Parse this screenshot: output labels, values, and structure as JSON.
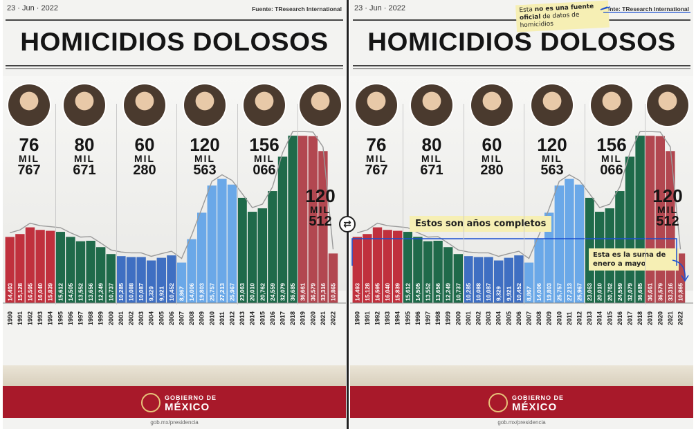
{
  "header": {
    "date": "23 · Jun · 2022",
    "source": "Fuente: TResearch International",
    "title": "HOMICIDIOS DOLOSOS"
  },
  "presidents": [
    {
      "icon": "portrait-salinas-icon",
      "total_line1": "76",
      "total_unit": "MIL",
      "total_line2": "767"
    },
    {
      "icon": "portrait-zedillo-icon",
      "total_line1": "80",
      "total_unit": "MIL",
      "total_line2": "671"
    },
    {
      "icon": "portrait-fox-icon",
      "total_line1": "60",
      "total_unit": "MIL",
      "total_line2": "280"
    },
    {
      "icon": "portrait-calderon-icon",
      "total_line1": "120",
      "total_unit": "MIL",
      "total_line2": "563"
    },
    {
      "icon": "portrait-pena-icon",
      "total_line1": "156",
      "total_unit": "MIL",
      "total_line2": "066"
    },
    {
      "icon": "portrait-amlo-icon",
      "total_line1": "120",
      "total_unit": "MIL",
      "total_line2": "512"
    }
  ],
  "chart_data": {
    "type": "bar",
    "title": "HOMICIDIOS DOLOSOS",
    "categories": [
      "1990",
      "1991",
      "1992",
      "1993",
      "1994",
      "1995",
      "1996",
      "1997",
      "1998",
      "1999",
      "2000",
      "2001",
      "2002",
      "2003",
      "2004",
      "2005",
      "2006",
      "2007",
      "2008",
      "2009",
      "2010",
      "2011",
      "2012",
      "2013",
      "2014",
      "2015",
      "2016",
      "2017",
      "2018",
      "2019",
      "2020",
      "2021",
      "2022"
    ],
    "values": [
      14493,
      15128,
      16595,
      16040,
      15839,
      15612,
      14505,
      13552,
      13656,
      12249,
      10737,
      10285,
      10088,
      10087,
      9329,
      9921,
      10452,
      8867,
      14006,
      19803,
      25757,
      27213,
      25967,
      23063,
      20010,
      20762,
      24559,
      32079,
      36685,
      36661,
      36579,
      33316,
      10865
    ],
    "value_labels": [
      "14,493",
      "15,128",
      "16,595",
      "16,040",
      "15,839",
      "15,612",
      "14,505",
      "13,552",
      "13,656",
      "12,249",
      "10,737",
      "10,285",
      "10,088",
      "10,087",
      "9,329",
      "9,921",
      "10,452",
      "8,867",
      "14,006",
      "19,803",
      "25,757",
      "27,213",
      "25,967",
      "23,063",
      "20,010",
      "20,762",
      "24,559",
      "32,079",
      "36,685",
      "36,661",
      "36,579",
      "33,316",
      "10,865"
    ],
    "ylim": [
      0,
      37000
    ],
    "colors": {
      "salinas": "#c0303d",
      "zedillo": "#1f6a4a",
      "fox": "#3f6fc2",
      "calderon": "#6aa8e8",
      "pena": "#1f6a4a",
      "amlo": "#b24750"
    }
  },
  "footer": {
    "gov_line1": "GOBIERNO DE",
    "gov_line2": "MÉXICO",
    "social": "gob.mx/presidencia"
  },
  "annotations": {
    "not_official_pre": "Esta ",
    "not_official_b1": "no es una fuente",
    "not_official_b2": "oficial",
    "not_official_post": " de datos de",
    "not_official_line3": "homicidios",
    "complete_years": "Estos son años completos",
    "partial_pre": "Esta es la ",
    "partial_b": "suma de",
    "partial_line2": "enero a mayo"
  }
}
